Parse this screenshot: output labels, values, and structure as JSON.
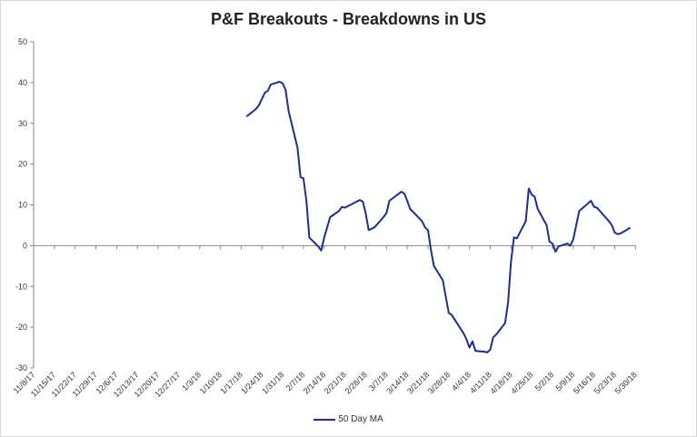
{
  "chart_data": {
    "type": "line",
    "title": "P&F Breakouts - Breakdowns in US",
    "xlabel": "",
    "ylabel": "",
    "ylim": [
      -30,
      50
    ],
    "yticks": [
      50,
      40,
      30,
      20,
      10,
      0,
      -10,
      -20,
      -30
    ],
    "grid": false,
    "legend_position": "bottom",
    "x_tick_labels": [
      "11/8/17",
      "11/15/17",
      "11/22/17",
      "11/29/17",
      "12/6/17",
      "12/13/17",
      "12/20/17",
      "12/27/17",
      "1/3/18",
      "1/10/18",
      "1/17/18",
      "1/24/18",
      "1/31/18",
      "2/7/18",
      "2/14/18",
      "2/21/18",
      "2/28/18",
      "3/7/18",
      "3/14/18",
      "3/21/18",
      "3/28/18",
      "4/4/18",
      "4/11/18",
      "4/18/18",
      "4/25/18",
      "5/2/18",
      "5/9/18",
      "5/16/18",
      "5/23/18",
      "5/30/18"
    ],
    "series": [
      {
        "name": "50 Day MA",
        "color": "#1f2d8f",
        "points": [
          [
            "1/19/18",
            31.8
          ],
          [
            "1/22/18",
            33.5
          ],
          [
            "1/23/18",
            34.5
          ],
          [
            "1/25/18",
            37.5
          ],
          [
            "1/26/18",
            38.0
          ],
          [
            "1/27/18",
            39.5
          ],
          [
            "1/29/18",
            40.0
          ],
          [
            "1/30/18",
            40.2
          ],
          [
            "1/31/18",
            39.8
          ],
          [
            "2/1/18",
            38.2
          ],
          [
            "2/2/18",
            33.0
          ],
          [
            "2/5/18",
            24.0
          ],
          [
            "2/6/18",
            16.8
          ],
          [
            "2/7/18",
            16.5
          ],
          [
            "2/8/18",
            11.0
          ],
          [
            "2/9/18",
            2.0
          ],
          [
            "2/12/18",
            -0.2
          ],
          [
            "2/13/18",
            -1.2
          ],
          [
            "2/14/18",
            2.0
          ],
          [
            "2/16/18",
            7.0
          ],
          [
            "2/19/18",
            8.5
          ],
          [
            "2/20/18",
            9.5
          ],
          [
            "2/21/18",
            9.3
          ],
          [
            "2/26/18",
            11.2
          ],
          [
            "2/27/18",
            10.8
          ],
          [
            "2/28/18",
            8.0
          ],
          [
            "3/1/18",
            3.8
          ],
          [
            "3/3/18",
            4.5
          ],
          [
            "3/6/18",
            7.0
          ],
          [
            "3/7/18",
            8.0
          ],
          [
            "3/8/18",
            11.0
          ],
          [
            "3/12/18",
            13.2
          ],
          [
            "3/13/18",
            12.8
          ],
          [
            "3/14/18",
            11.0
          ],
          [
            "3/15/18",
            9.0
          ],
          [
            "3/19/18",
            6.0
          ],
          [
            "3/20/18",
            4.5
          ],
          [
            "3/21/18",
            3.8
          ],
          [
            "3/22/18",
            -1.0
          ],
          [
            "3/23/18",
            -5.0
          ],
          [
            "3/26/18",
            -8.5
          ],
          [
            "3/28/18",
            -16.5
          ],
          [
            "3/29/18",
            -17.0
          ],
          [
            "4/2/18",
            -21.5
          ],
          [
            "4/3/18",
            -23.0
          ],
          [
            "4/4/18",
            -25.0
          ],
          [
            "4/5/18",
            -23.5
          ],
          [
            "4/6/18",
            -25.8
          ],
          [
            "4/9/18",
            -26.0
          ],
          [
            "4/10/18",
            -26.2
          ],
          [
            "4/11/18",
            -25.5
          ],
          [
            "4/12/18",
            -22.5
          ],
          [
            "4/13/18",
            -21.8
          ],
          [
            "4/16/18",
            -19.0
          ],
          [
            "4/17/18",
            -14.0
          ],
          [
            "4/18/18",
            -4.0
          ],
          [
            "4/19/18",
            2.0
          ],
          [
            "4/20/18",
            1.8
          ],
          [
            "4/23/18",
            6.0
          ],
          [
            "4/24/18",
            14.0
          ],
          [
            "4/25/18",
            12.5
          ],
          [
            "4/26/18",
            12.0
          ],
          [
            "4/27/18",
            9.0
          ],
          [
            "4/30/18",
            5.0
          ],
          [
            "5/1/18",
            1.0
          ],
          [
            "5/2/18",
            0.5
          ],
          [
            "5/3/18",
            -1.5
          ],
          [
            "5/4/18",
            -0.2
          ],
          [
            "5/7/18",
            0.5
          ],
          [
            "5/8/18",
            0.0
          ],
          [
            "5/9/18",
            1.5
          ],
          [
            "5/11/18",
            8.5
          ],
          [
            "5/15/18",
            11.0
          ],
          [
            "5/16/18",
            9.5
          ],
          [
            "5/17/18",
            9.3
          ],
          [
            "5/21/18",
            6.0
          ],
          [
            "5/22/18",
            5.0
          ],
          [
            "5/23/18",
            3.2
          ],
          [
            "5/24/18",
            2.8
          ],
          [
            "5/25/18",
            3.0
          ],
          [
            "5/28/18",
            4.3
          ]
        ]
      }
    ]
  }
}
